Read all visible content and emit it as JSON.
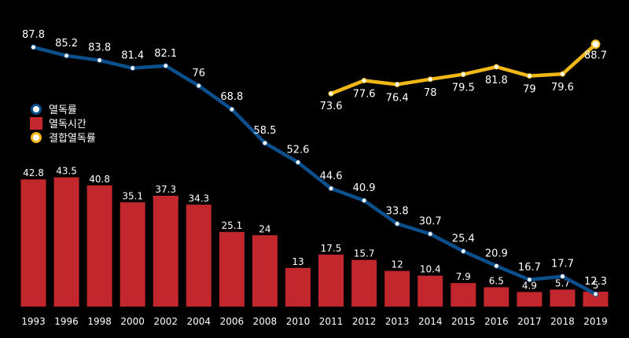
{
  "chart_data": {
    "type": "bar+line",
    "categories": [
      "1993",
      "1996",
      "1998",
      "2000",
      "2002",
      "2004",
      "2006",
      "2008",
      "2010",
      "2011",
      "2012",
      "2013",
      "2014",
      "2015",
      "2016",
      "2017",
      "2018",
      "2019"
    ],
    "series": [
      {
        "name": "열독률",
        "kind": "line",
        "color": "#0b4f8c",
        "marker_color": "#ffffff",
        "values": [
          87.8,
          85.2,
          83.8,
          81.4,
          82.1,
          76,
          68.8,
          58.5,
          52.6,
          44.6,
          40.9,
          33.8,
          30.7,
          25.4,
          20.9,
          16.7,
          17.7,
          12.3
        ]
      },
      {
        "name": "열독시간",
        "kind": "bar",
        "color": "#c1272d",
        "values": [
          42.8,
          43.5,
          40.8,
          35.1,
          37.3,
          34.3,
          25.1,
          24,
          13,
          17.5,
          15.7,
          12,
          10.4,
          7.9,
          6.5,
          4.9,
          5.7,
          5
        ]
      },
      {
        "name": "결합열독률",
        "kind": "line",
        "color": "#f2b817",
        "marker_color": "#ffffff",
        "values": [
          null,
          null,
          null,
          null,
          null,
          null,
          null,
          null,
          null,
          73.6,
          77.6,
          76.4,
          78,
          79.5,
          81.8,
          79,
          79.6,
          88.7
        ]
      }
    ],
    "legend": {
      "position": "left",
      "items": [
        "열독률",
        "열독시간",
        "결합열독률"
      ]
    },
    "title": "",
    "xlabel": "",
    "ylabel": "",
    "background": "#000000"
  }
}
